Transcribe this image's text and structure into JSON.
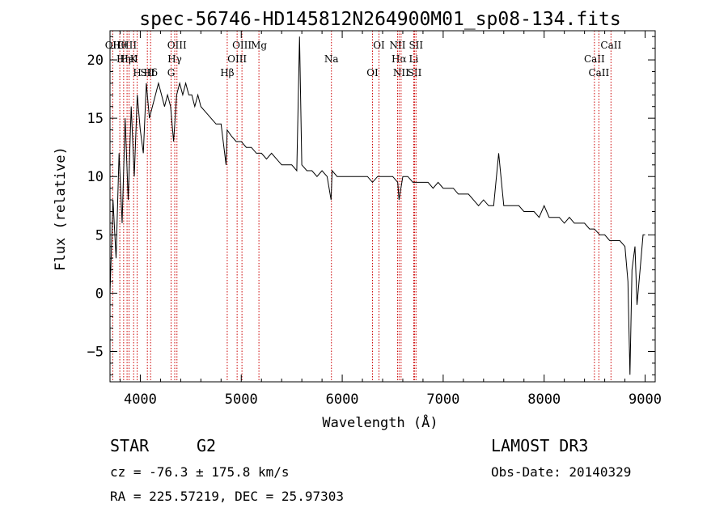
{
  "chart_data": {
    "type": "line",
    "title": "spec-56746-HD145812N264900M01_sp08-134.fits",
    "xlabel": "Wavelength (Å)",
    "ylabel": "Flux (relative)",
    "xlim": [
      3700,
      9100
    ],
    "ylim": [
      -7.6,
      22.5
    ],
    "xticks": [
      4000,
      5000,
      6000,
      7000,
      8000,
      9000
    ],
    "yticks": [
      -5,
      0,
      5,
      10,
      15,
      20
    ],
    "grid": false,
    "series": [
      {
        "x": [
          3700,
          3730,
          3760,
          3790,
          3820,
          3850,
          3880,
          3910,
          3940,
          3970,
          4000,
          4030,
          4060,
          4090,
          4120,
          4150,
          4180,
          4210,
          4240,
          4270,
          4300,
          4330,
          4360,
          4390,
          4420,
          4450,
          4480,
          4510,
          4540,
          4570,
          4600,
          4650,
          4700,
          4750,
          4800,
          4850,
          4860,
          4900,
          4950,
          5000,
          5050,
          5100,
          5150,
          5200,
          5250,
          5300,
          5350,
          5400,
          5450,
          5500,
          5550,
          5577,
          5600,
          5650,
          5700,
          5750,
          5800,
          5850,
          5890,
          5900,
          5950,
          6000,
          6050,
          6100,
          6150,
          6200,
          6250,
          6300,
          6350,
          6400,
          6450,
          6500,
          6550,
          6563,
          6600,
          6650,
          6700,
          6750,
          6800,
          6850,
          6900,
          6950,
          7000,
          7050,
          7100,
          7150,
          7200,
          7250,
          7300,
          7350,
          7400,
          7450,
          7500,
          7550,
          7600,
          7650,
          7700,
          7750,
          7800,
          7850,
          7900,
          7950,
          8000,
          8050,
          8100,
          8150,
          8200,
          8250,
          8300,
          8350,
          8400,
          8450,
          8498,
          8550,
          8600,
          8650,
          8700,
          8750,
          8800,
          8830,
          8850,
          8870,
          8900,
          8920,
          8950,
          8980,
          9000
        ],
        "y": [
          0,
          8,
          3,
          12,
          6,
          15,
          8,
          16,
          10,
          17,
          14,
          12,
          18,
          15,
          16,
          17,
          18,
          17,
          16,
          17,
          16,
          13,
          17,
          18,
          17,
          18,
          17,
          17,
          16,
          17,
          16,
          15.5,
          15,
          14.5,
          14.5,
          11,
          14,
          13.5,
          13,
          13,
          12.5,
          12.5,
          12,
          12,
          11.5,
          12,
          11.5,
          11,
          11,
          11,
          10.5,
          22,
          11,
          10.5,
          10.5,
          10,
          10.5,
          10,
          8,
          10.5,
          10,
          10,
          10,
          10,
          10,
          10,
          10,
          9.5,
          10,
          10,
          10,
          10,
          9.5,
          8,
          10,
          10,
          9.5,
          9.5,
          9.5,
          9.5,
          9,
          9.5,
          9,
          9,
          9,
          8.5,
          8.5,
          8.5,
          8,
          7.5,
          8,
          7.5,
          7.5,
          12,
          7.5,
          7.5,
          7.5,
          7.5,
          7,
          7,
          7,
          6.5,
          7.5,
          6.5,
          6.5,
          6.5,
          6,
          6.5,
          6,
          6,
          6,
          5.5,
          5.5,
          5,
          5,
          4.5,
          4.5,
          4.5,
          4,
          1,
          -7,
          2,
          4,
          -1,
          2,
          5,
          5
        ]
      }
    ],
    "line_markers": [
      {
        "label": "Hθ",
        "x": 3797
      },
      {
        "label": "K",
        "x": 3934
      },
      {
        "label": "Hδ",
        "x": 4102
      },
      {
        "label": "OII",
        "x": 3727
      },
      {
        "label": "HeI",
        "x": 3889
      },
      {
        "label": "SII",
        "x": 4070
      },
      {
        "label": "OIII",
        "x": 3869
      },
      {
        "label": "Hη",
        "x": 3835
      },
      {
        "label": "H",
        "x": 3969
      },
      {
        "label": "OIII",
        "x": 4363
      },
      {
        "label": "Hγ",
        "x": 4341
      },
      {
        "label": "G",
        "x": 4305
      },
      {
        "label": "OIII",
        "x": 5007
      },
      {
        "label": "OIII",
        "x": 4959
      },
      {
        "label": "Hβ",
        "x": 4861
      },
      {
        "label": "Mg",
        "x": 5175
      },
      {
        "label": "Na",
        "x": 5893
      },
      {
        "label": "OI",
        "x": 6300
      },
      {
        "label": "OI",
        "x": 6364
      },
      {
        "label": "Hα",
        "x": 6563
      },
      {
        "label": "SII",
        "x": 6717
      },
      {
        "label": "NII",
        "x": 6548
      },
      {
        "label": "Li",
        "x": 6708
      },
      {
        "label": "NII",
        "x": 6583
      },
      {
        "label": "SII",
        "x": 6731
      },
      {
        "label": "CaII",
        "x": 8498
      },
      {
        "label": "CaII",
        "x": 8542
      },
      {
        "label": "CaII",
        "x": 8662
      }
    ]
  },
  "info": {
    "class_label": "STAR",
    "subclass": "G2",
    "survey": "LAMOST DR3",
    "cz": "cz = -76.3 ± 175.8 km/s",
    "obs_date": "Obs-Date: 20140329",
    "coords": "RA = 225.57219, DEC =  25.97303"
  }
}
